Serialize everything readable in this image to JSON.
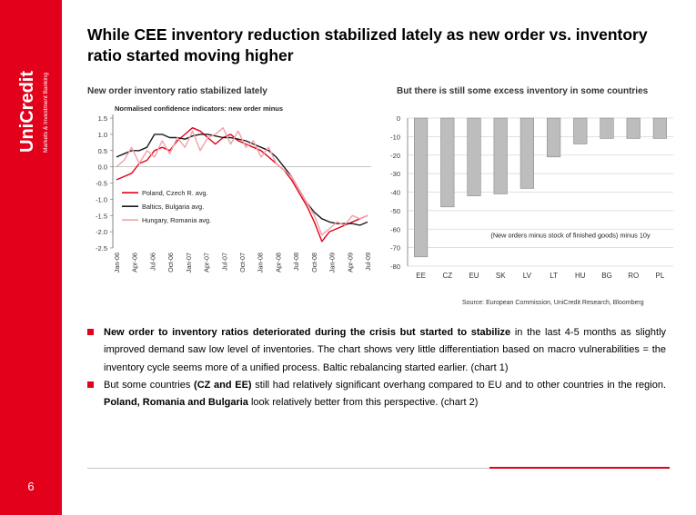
{
  "brand": {
    "name": "UniCredit",
    "tagline": "Markets & Investment Banking",
    "color": "#e2001a"
  },
  "page_number": "6",
  "title": "While CEE inventory reduction stabilized lately as new order vs. inventory ratio started moving higher",
  "left_chart_heading": "New order inventory ratio stabilized lately",
  "right_chart_heading": "But there is still some excess inventory in some countries",
  "source": "Source: European Commission, UniCredit Research, Bloomberg",
  "chart_data": [
    {
      "type": "line",
      "title": "Normalised confidence indicators: new order minus",
      "x_labels": [
        "Jan-06",
        "Apr-06",
        "Jul-06",
        "Oct-06",
        "Jan-07",
        "Apr-07",
        "Jul-07",
        "Oct-07",
        "Jan-08",
        "Apr-08",
        "Jul-08",
        "Oct-08",
        "Jan-09",
        "Apr-09",
        "Jul-09"
      ],
      "yticks": [
        "1.5",
        "1.0",
        "0.5",
        "0.0",
        "-0.5",
        "-1.0",
        "-1.5",
        "-2.0",
        "-2.5"
      ],
      "ylim": [
        -2.5,
        1.5
      ],
      "grid": false,
      "legend_position": "bottom-left",
      "series": [
        {
          "name": "Poland, Czech R. avg.",
          "color": "#e2001a",
          "values": [
            -0.4,
            -0.3,
            -0.2,
            0.1,
            0.2,
            0.5,
            0.6,
            0.5,
            0.8,
            1.0,
            1.2,
            1.1,
            0.9,
            0.7,
            0.9,
            1.0,
            0.8,
            0.7,
            0.6,
            0.5,
            0.3,
            0.1,
            -0.1,
            -0.4,
            -0.8,
            -1.2,
            -1.7,
            -2.3,
            -2.0,
            -1.9,
            -1.8,
            -1.7,
            -1.6,
            -1.5
          ]
        },
        {
          "name": "Baltics, Bulgaria avg.",
          "color": "#1a1a1a",
          "values": [
            0.3,
            0.4,
            0.5,
            0.5,
            0.6,
            1.0,
            1.0,
            0.9,
            0.9,
            0.85,
            0.95,
            1.0,
            1.0,
            0.95,
            0.9,
            0.9,
            0.85,
            0.8,
            0.7,
            0.6,
            0.5,
            0.3,
            0.0,
            -0.3,
            -0.7,
            -1.1,
            -1.4,
            -1.6,
            -1.7,
            -1.75,
            -1.75,
            -1.75,
            -1.8,
            -1.7
          ]
        },
        {
          "name": "Hungary, Romania avg.",
          "color": "#f2a0a6",
          "values": [
            0.0,
            0.2,
            0.6,
            0.1,
            0.5,
            0.3,
            0.8,
            0.4,
            0.9,
            0.6,
            1.1,
            0.5,
            0.9,
            1.0,
            1.2,
            0.7,
            1.1,
            0.6,
            0.8,
            0.3,
            0.6,
            0.1,
            -0.1,
            -0.3,
            -0.7,
            -1.1,
            -1.5,
            -2.1,
            -1.9,
            -1.7,
            -1.8,
            -1.5,
            -1.6,
            -1.5
          ]
        }
      ]
    },
    {
      "type": "bar",
      "categories": [
        "EE",
        "CZ",
        "EU",
        "SK",
        "LV",
        "LT",
        "HU",
        "BG",
        "RO",
        "PL"
      ],
      "values": [
        -75,
        -48,
        -42,
        -41,
        -38,
        -21,
        -14,
        -11,
        -11,
        -11
      ],
      "yticks": [
        "0",
        "-10",
        "-20",
        "-30",
        "-40",
        "-50",
        "-60",
        "-70",
        "-80"
      ],
      "ylim": [
        -80,
        0
      ],
      "annotation": "(New orders minus stock of finished goods) minus 10y",
      "grid": true,
      "bar_color": "#bdbdbd"
    }
  ],
  "bullets": [
    {
      "bold": "New order to inventory ratios deteriorated during the crisis but started to stabilize",
      "rest": " in the last 4-5 months as slightly improved demand saw low level of inventories. The chart shows very little differentiation based on macro vulnerabilities = the inventory cycle seems more of a unified process. Baltic rebalancing started earlier. (chart 1)"
    },
    {
      "pre": "But some countries ",
      "bold1": "(CZ and EE)",
      "mid": " still had relatively significant overhang compared to EU and to other countries in the region. ",
      "bold2": "Poland, Romania and Bulgaria",
      "post": " look relatively better from this perspective. (chart 2)"
    }
  ]
}
